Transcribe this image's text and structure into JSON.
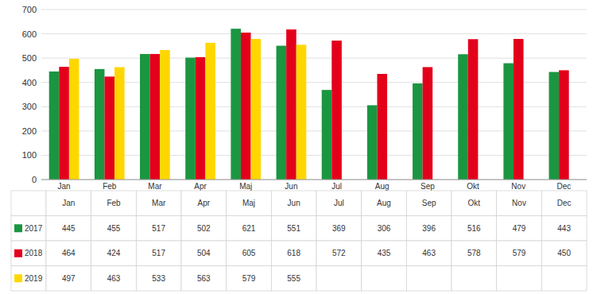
{
  "chart_data": {
    "type": "bar",
    "categories": [
      "Jan",
      "Feb",
      "Mar",
      "Apr",
      "Maj",
      "Jun",
      "Jul",
      "Aug",
      "Sep",
      "Okt",
      "Nov",
      "Dec"
    ],
    "series": [
      {
        "name": "2017",
        "color": "#1a9641",
        "values": [
          445,
          455,
          517,
          502,
          621,
          551,
          369,
          306,
          396,
          516,
          479,
          443
        ]
      },
      {
        "name": "2018",
        "color": "#e3001b",
        "values": [
          464,
          424,
          517,
          504,
          605,
          618,
          572,
          435,
          463,
          578,
          579,
          450
        ]
      },
      {
        "name": "2019",
        "color": "#ffd700",
        "values": [
          497,
          463,
          533,
          563,
          579,
          555,
          null,
          null,
          null,
          null,
          null,
          null
        ]
      }
    ],
    "ylim": [
      0,
      700
    ],
    "yticks": [
      0,
      100,
      200,
      300,
      400,
      500,
      600,
      700
    ],
    "grid": true
  }
}
